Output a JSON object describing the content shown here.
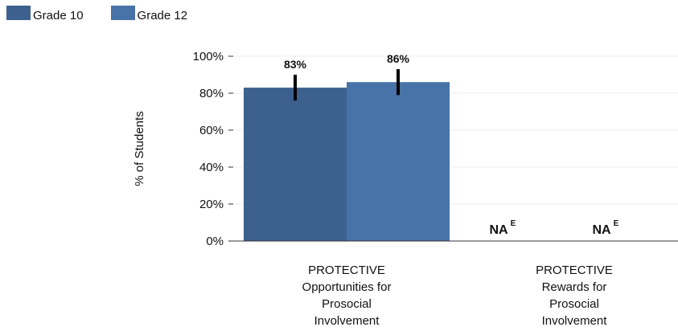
{
  "chart_data": {
    "type": "bar",
    "ylabel": "% of Students",
    "ylim": [
      0,
      100
    ],
    "yticks": [
      0,
      20,
      40,
      60,
      80,
      100
    ],
    "ytick_labels": [
      "0%",
      "20%",
      "40%",
      "60%",
      "80%",
      "100%"
    ],
    "categories": [
      {
        "lines": [
          "PROTECTIVE",
          "Opportunities for",
          "Prosocial",
          "Involvement"
        ]
      },
      {
        "lines": [
          "PROTECTIVE",
          "Rewards for",
          "Prosocial",
          "Involvement"
        ]
      }
    ],
    "series": [
      {
        "name": "Grade 10",
        "color": "#3d618f",
        "values": [
          83,
          null
        ],
        "error": [
          [
            76,
            90
          ],
          null
        ],
        "labels": [
          "83%",
          "NA"
        ]
      },
      {
        "name": "Grade 12",
        "color": "#4773a8",
        "values": [
          86,
          null
        ],
        "error": [
          [
            79,
            93
          ],
          null
        ],
        "labels": [
          "86%",
          "NA"
        ]
      }
    ],
    "na_superscript": "E",
    "grid": true,
    "legend_position": "top-left"
  }
}
